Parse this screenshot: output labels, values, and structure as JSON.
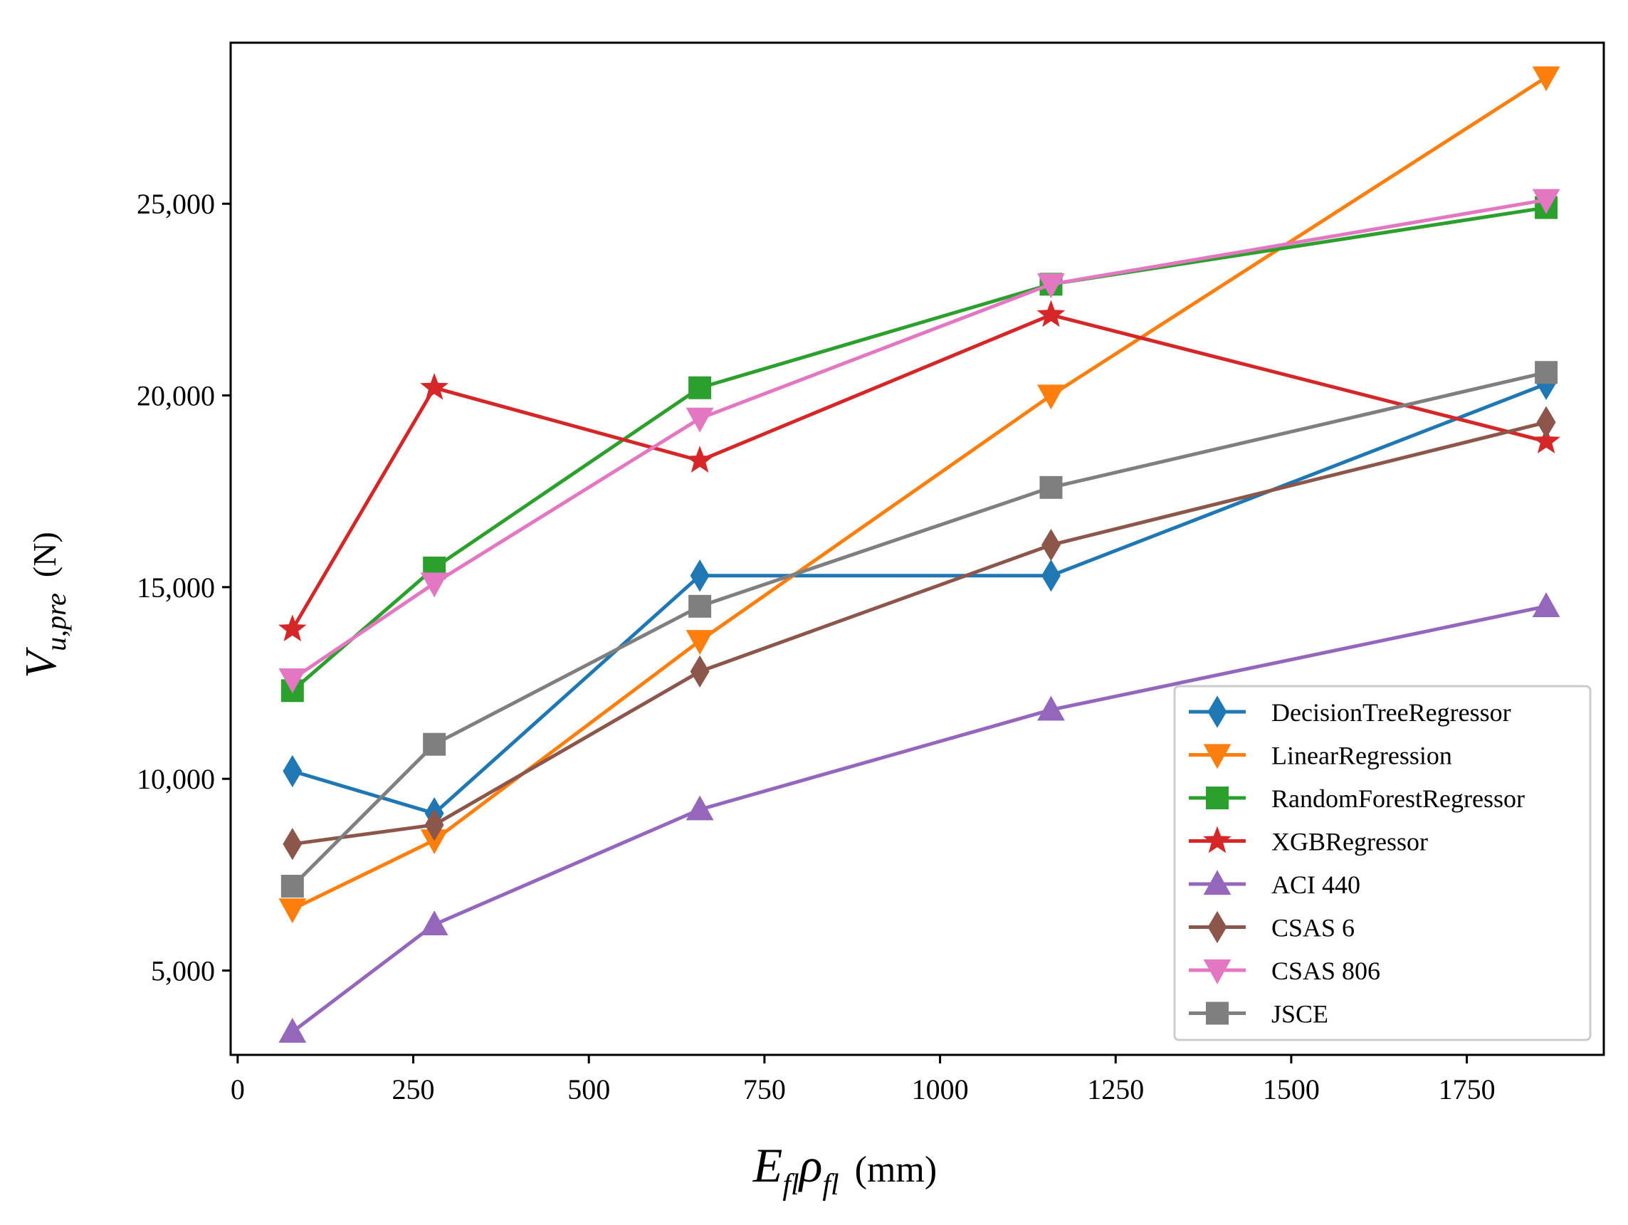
{
  "chart_data": {
    "type": "line",
    "title": "",
    "xlabel": {
      "main": "E",
      "sub1": "fl",
      "greek": "ρ",
      "sub2": "fl",
      "unit": "(mm)"
    },
    "ylabel": {
      "main": "V",
      "sub": "u,pre",
      "unit": "(N)"
    },
    "xlim": [
      -10,
      1945
    ],
    "ylim": [
      2800,
      29200
    ],
    "xticks": [
      0,
      250,
      500,
      750,
      1000,
      1250,
      1500,
      1750
    ],
    "xtick_labels": [
      "0",
      "250",
      "500",
      "750",
      "1000",
      "1250",
      "1500",
      "1750"
    ],
    "yticks": [
      5000,
      10000,
      15000,
      20000,
      25000
    ],
    "ytick_labels": [
      "5,000",
      "10,000",
      "15,000",
      "20,000",
      "25,000"
    ],
    "x": [
      78,
      280,
      658,
      1158,
      1863
    ],
    "legend_position": "lower-right",
    "series": [
      {
        "name": "DecisionTreeRegressor",
        "color": "#1f77b4",
        "marker": "thin_diamond",
        "values": [
          10200,
          9100,
          15300,
          15300,
          20300
        ]
      },
      {
        "name": "LinearRegression",
        "color": "#ff7f0e",
        "marker": "triangle_down",
        "values": [
          6600,
          8400,
          13600,
          20000,
          28300
        ]
      },
      {
        "name": "RandomForestRegressor",
        "color": "#2ca02c",
        "marker": "square",
        "values": [
          12300,
          15500,
          20200,
          22900,
          24900
        ]
      },
      {
        "name": "XGBRegressor",
        "color": "#d62728",
        "marker": "star",
        "values": [
          13900,
          20200,
          18300,
          22100,
          18800
        ]
      },
      {
        "name": "ACI 440",
        "color": "#9467bd",
        "marker": "triangle_up",
        "values": [
          3400,
          6200,
          9200,
          11800,
          14500
        ]
      },
      {
        "name": "CSAS 6",
        "color": "#8c564b",
        "marker": "thin_diamond",
        "values": [
          8300,
          8800,
          12800,
          16100,
          19300
        ]
      },
      {
        "name": "CSAS 806",
        "color": "#e377c2",
        "marker": "triangle_down",
        "values": [
          12600,
          15100,
          19400,
          22900,
          25100
        ]
      },
      {
        "name": "JSCE",
        "color": "#7f7f7f",
        "marker": "square",
        "values": [
          7200,
          10900,
          14500,
          17600,
          20600
        ]
      }
    ]
  }
}
